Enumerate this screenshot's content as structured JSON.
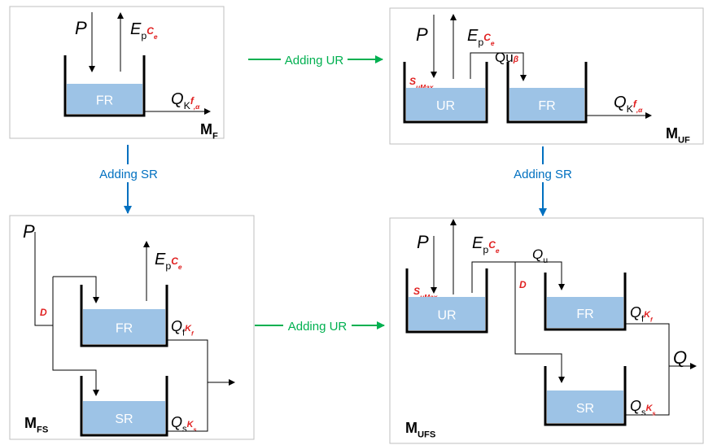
{
  "transitions": {
    "f_to_uf": "Adding UR",
    "f_to_fs": "Adding SR",
    "uf_to_ufs": "Adding SR",
    "fs_to_ufs": "Adding UR"
  },
  "panels": [
    {
      "model": [
        "M",
        "F"
      ],
      "precip": "P",
      "evap": [
        "E",
        "p",
        "C",
        "e"
      ],
      "stores": [
        "FR"
      ],
      "outflow": [
        "Q",
        "K",
        "f",
        ",α"
      ]
    },
    {
      "model": [
        "M",
        "UF"
      ],
      "precip": "P",
      "evap": [
        "E",
        "p",
        "C",
        "e"
      ],
      "threshold": [
        "S",
        "uMax"
      ],
      "split": [
        "Qu",
        "β"
      ],
      "stores": [
        "UR",
        "FR"
      ],
      "outflow": [
        "Q",
        "K",
        "f",
        ",α"
      ]
    },
    {
      "model": [
        "M",
        "FS"
      ],
      "precip": "P",
      "evap": [
        "E",
        "p",
        "C",
        "e"
      ],
      "split": "D",
      "stores": [
        "FR",
        "SR"
      ],
      "fast_flow": [
        "Q",
        "f",
        "K",
        "f"
      ],
      "slow_flow": [
        "Q",
        "s",
        "K",
        "s"
      ]
    },
    {
      "model": [
        "M",
        "UFS"
      ],
      "precip": "P",
      "evap": [
        "E",
        "p",
        "C",
        "e"
      ],
      "threshold": [
        "S",
        "uMax"
      ],
      "unsat_flow": [
        "Q",
        "u"
      ],
      "split": "D",
      "stores": [
        "UR",
        "FR",
        "SR"
      ],
      "fast_flow": [
        "Q",
        "f",
        "K",
        "f"
      ],
      "slow_flow": [
        "Q",
        "s",
        "K",
        "s"
      ],
      "outflow": "Q"
    }
  ]
}
